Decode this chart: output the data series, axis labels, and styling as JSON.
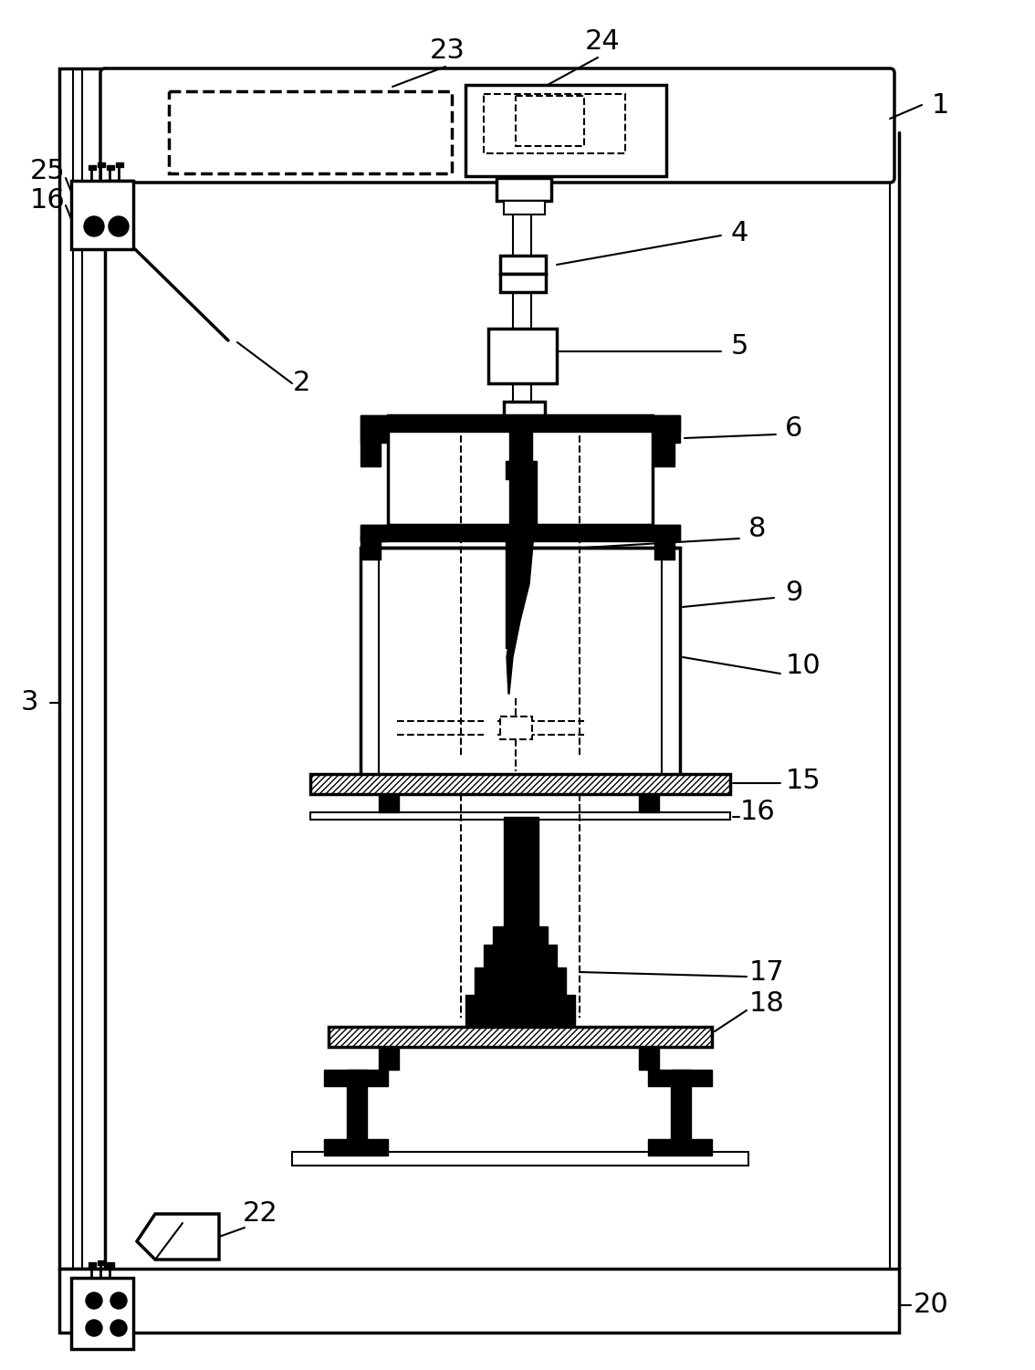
{
  "bg": "#ffffff",
  "lc": "#000000",
  "fw": 11.34,
  "fh": 15.01,
  "dpi": 100
}
